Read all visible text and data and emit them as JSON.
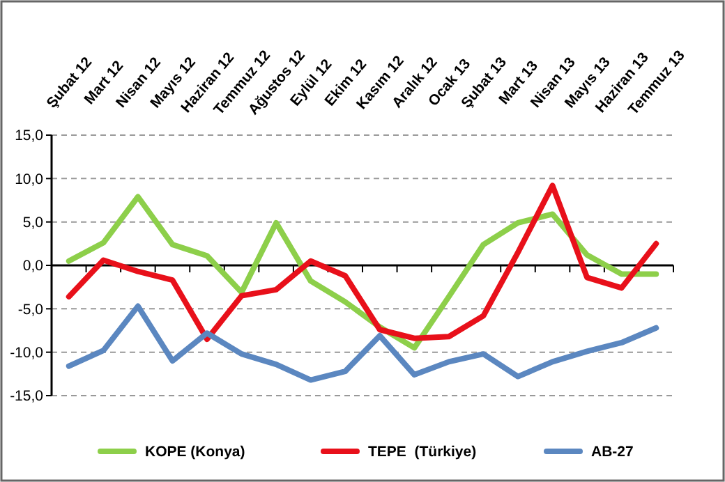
{
  "chart_data": {
    "type": "line",
    "categories": [
      "Şubat 12",
      "Mart 12",
      "Nisan 12",
      "Mayıs 12",
      "Haziran 12",
      "Temmuz 12",
      "Ağustos 12",
      "Eylül 12",
      "Ekim 12",
      "Kasım 12",
      "Aralık 12",
      "Ocak 13",
      "Şubat 13",
      "Mart 13",
      "Nisan 13",
      "Mayıs 13",
      "Haziran 13",
      "Temmuz 13"
    ],
    "series": [
      {
        "name": "KOPE (Konya)",
        "color": "#8dcf4a",
        "values": [
          0.5,
          2.6,
          7.9,
          2.4,
          1.1,
          -3.1,
          4.9,
          -1.8,
          -4.2,
          -7.1,
          -9.5,
          -3.6,
          2.4,
          4.9,
          5.9,
          1.2,
          -1.0,
          -1.0
        ]
      },
      {
        "name": "TEPE  (Türkiye)",
        "color": "#e8101a",
        "values": [
          -3.6,
          0.6,
          -0.7,
          -1.7,
          -8.5,
          -3.5,
          -2.8,
          0.5,
          -1.2,
          -7.4,
          -8.4,
          -8.2,
          -5.8,
          1.5,
          9.2,
          -1.4,
          -2.6,
          2.5
        ]
      },
      {
        "name": "AB-27",
        "color": "#5b87c0",
        "values": [
          -11.6,
          -9.8,
          -4.7,
          -11.0,
          -7.8,
          -10.2,
          -11.4,
          -13.2,
          -12.2,
          -8.1,
          -12.6,
          -11.1,
          -10.2,
          -12.8,
          -11.1,
          -9.9,
          -8.9,
          -7.2
        ]
      }
    ],
    "ylim": [
      -15,
      15
    ],
    "yticks": [
      {
        "value": -15,
        "label": "-15,0"
      },
      {
        "value": -10,
        "label": "-10,0"
      },
      {
        "value": -5,
        "label": "-5,0"
      },
      {
        "value": 0,
        "label": "0,0"
      },
      {
        "value": 5,
        "label": "5,0"
      },
      {
        "value": 10,
        "label": "10,0"
      },
      {
        "value": 15,
        "label": "15,0"
      }
    ],
    "grid": "y",
    "line_style": "solid",
    "marker": "none",
    "legend": "bottom"
  }
}
